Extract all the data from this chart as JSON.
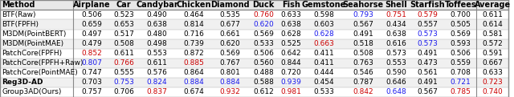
{
  "columns": [
    "Method",
    "Airplane",
    "Car",
    "Candybar",
    "Chicken",
    "Diamond",
    "Duck",
    "Fish",
    "Gemstone",
    "Seahorse",
    "Shell",
    "Starfish",
    "Toffees",
    "Average"
  ],
  "rows": [
    {
      "method": "BTF(Raw)",
      "bold": false,
      "values": [
        0.506,
        0.523,
        0.49,
        0.464,
        0.535,
        0.76,
        0.633,
        0.598,
        0.793,
        0.751,
        0.579,
        0.7,
        0.611
      ],
      "colors": [
        "k",
        "k",
        "k",
        "k",
        "k",
        "r",
        "k",
        "k",
        "b",
        "r",
        "r",
        "k",
        "k"
      ]
    },
    {
      "method": "BTF(FPFH)",
      "bold": false,
      "values": [
        0.659,
        0.653,
        0.638,
        0.814,
        0.677,
        0.62,
        0.638,
        0.603,
        0.567,
        0.434,
        0.557,
        0.505,
        0.614
      ],
      "colors": [
        "k",
        "k",
        "k",
        "k",
        "k",
        "b",
        "k",
        "k",
        "k",
        "k",
        "k",
        "k",
        "k"
      ]
    },
    {
      "method": "M3DM(PointBERT)",
      "bold": false,
      "values": [
        0.497,
        0.517,
        0.48,
        0.716,
        0.661,
        0.569,
        0.628,
        0.628,
        0.491,
        0.638,
        0.573,
        0.569,
        0.581
      ],
      "colors": [
        "k",
        "k",
        "k",
        "k",
        "k",
        "k",
        "k",
        "b",
        "k",
        "k",
        "b",
        "k",
        "k"
      ]
    },
    {
      "method": "M3DM(PointMAE)",
      "bold": false,
      "values": [
        0.479,
        0.508,
        0.498,
        0.739,
        0.62,
        0.533,
        0.525,
        0.663,
        0.518,
        0.616,
        0.573,
        0.593,
        0.572
      ],
      "colors": [
        "k",
        "k",
        "k",
        "k",
        "k",
        "k",
        "k",
        "r",
        "k",
        "k",
        "b",
        "k",
        "k"
      ]
    },
    {
      "method": "PatchCore(FPFH)",
      "bold": false,
      "values": [
        0.852,
        0.611,
        0.553,
        0.872,
        0.569,
        0.506,
        0.642,
        0.411,
        0.508,
        0.573,
        0.491,
        0.506,
        0.591
      ],
      "colors": [
        "r",
        "k",
        "k",
        "k",
        "k",
        "k",
        "k",
        "k",
        "k",
        "k",
        "k",
        "k",
        "k"
      ]
    },
    {
      "method": "PatchCore(FPFH+Raw)",
      "bold": false,
      "values": [
        0.807,
        0.766,
        0.611,
        0.885,
        0.767,
        0.56,
        0.844,
        0.411,
        0.763,
        0.553,
        0.473,
        0.559,
        0.667
      ],
      "colors": [
        "b",
        "r",
        "k",
        "r",
        "k",
        "k",
        "k",
        "k",
        "k",
        "k",
        "k",
        "k",
        "k"
      ]
    },
    {
      "method": "PatchCore(PointMAE)",
      "bold": false,
      "values": [
        0.747,
        0.555,
        0.576,
        0.864,
        0.801,
        0.488,
        0.72,
        0.444,
        0.546,
        0.59,
        0.561,
        0.708,
        0.633
      ],
      "colors": [
        "k",
        "k",
        "k",
        "k",
        "k",
        "k",
        "k",
        "k",
        "k",
        "k",
        "k",
        "k",
        "k"
      ]
    },
    {
      "method": "Reg3D-AD",
      "bold": true,
      "values": [
        0.703,
        0.753,
        0.824,
        0.884,
        0.884,
        0.588,
        0.939,
        0.454,
        0.787,
        0.646,
        0.491,
        0.721,
        0.723
      ],
      "colors": [
        "k",
        "b",
        "b",
        "b",
        "b",
        "k",
        "b",
        "k",
        "k",
        "k",
        "k",
        "b",
        "r"
      ]
    },
    {
      "method": "Group3AD(Ours)",
      "bold": false,
      "values": [
        0.757,
        0.706,
        0.837,
        0.674,
        0.932,
        0.612,
        0.981,
        0.533,
        0.842,
        0.648,
        0.567,
        0.785,
        0.74
      ],
      "colors": [
        "k",
        "k",
        "r",
        "k",
        "r",
        "k",
        "r",
        "k",
        "r",
        "b",
        "k",
        "r",
        "r"
      ]
    }
  ],
  "font_size": 6.5,
  "header_font_size": 7.0,
  "col_widths_raw": [
    1.6,
    0.8,
    0.6,
    0.85,
    0.75,
    0.85,
    0.6,
    0.6,
    0.85,
    0.85,
    0.6,
    0.75,
    0.7,
    0.7
  ]
}
